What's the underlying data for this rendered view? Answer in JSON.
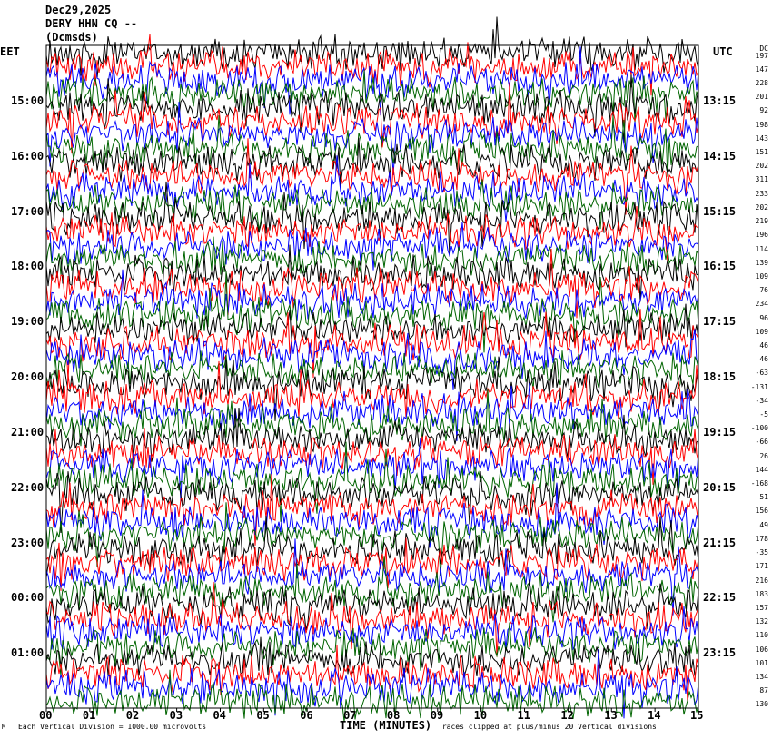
{
  "header": {
    "date": "Dec29,2025",
    "station": "DERY HHN CQ --",
    "subtitle": "(Dcmsds)"
  },
  "left_tz": "EET",
  "right_tz": "UTC",
  "dc_label": "DC",
  "footer": {
    "scale_note": "Each Vertical Division = 1000.00 microvolts",
    "clip_note": "Traces clipped at plus/minus 20 Vertical divisions",
    "corner_mark": "M"
  },
  "colors": {
    "trace_cycle": [
      "#000000",
      "#ff0000",
      "#0000ff",
      "#006400"
    ]
  },
  "chart_data": {
    "type": "line",
    "title": "Dec29,2025 DERY HHN CQ --",
    "xlabel": "TIME (MINUTES)",
    "xlim": [
      0,
      15
    ],
    "x_ticks": [
      "00",
      "01",
      "02",
      "03",
      "04",
      "05",
      "06",
      "07",
      "08",
      "09",
      "10",
      "11",
      "12",
      "13",
      "14",
      "15"
    ],
    "y_labels_left": [
      "15:00",
      "16:00",
      "17:00",
      "18:00",
      "19:00",
      "20:00",
      "21:00",
      "22:00",
      "23:00",
      "00:00",
      "01:00"
    ],
    "y_labels_right": [
      "13:15",
      "14:15",
      "15:15",
      "16:15",
      "17:15",
      "18:15",
      "19:15",
      "20:15",
      "21:15",
      "22:15",
      "23:15"
    ],
    "dc_offsets": [
      197,
      147,
      228,
      201,
      92,
      198,
      143,
      151,
      202,
      311,
      233,
      202,
      219,
      196,
      114,
      139,
      109,
      76,
      234,
      96,
      109,
      46,
      46,
      -63,
      -131,
      -34,
      -5,
      -100,
      -66,
      26,
      144,
      -168,
      51,
      156,
      49,
      178,
      -35,
      171,
      216,
      183,
      157,
      132,
      110,
      106,
      101,
      134,
      87,
      130
    ]
  }
}
